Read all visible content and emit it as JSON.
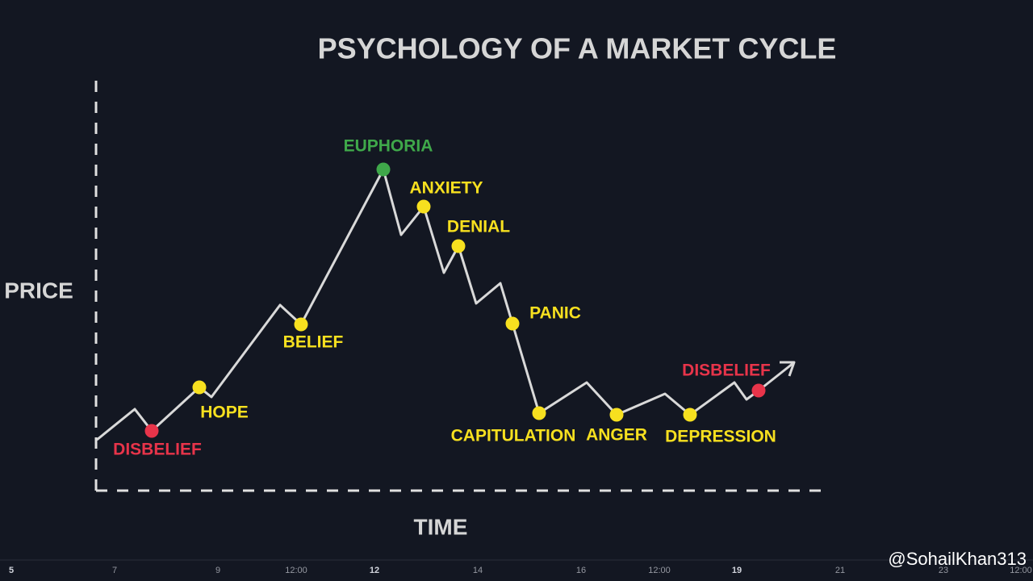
{
  "title": "PSYCHOLOGY OF A MARKET CYCLE",
  "axes": {
    "y": "PRICE",
    "x": "TIME"
  },
  "stages": [
    {
      "label": "DISBELIEF",
      "color": "#e8344a"
    },
    {
      "label": "HOPE",
      "color": "#f7e01f"
    },
    {
      "label": "BELIEF",
      "color": "#f7e01f"
    },
    {
      "label": "EUPHORIA",
      "color": "#3fa84a"
    },
    {
      "label": "ANXIETY",
      "color": "#f7e01f"
    },
    {
      "label": "DENIAL",
      "color": "#f7e01f"
    },
    {
      "label": "PANIC",
      "color": "#f7e01f"
    },
    {
      "label": "CAPITULATION",
      "color": "#f7e01f"
    },
    {
      "label": "ANGER",
      "color": "#f7e01f"
    },
    {
      "label": "DEPRESSION",
      "color": "#f7e01f"
    },
    {
      "label": "DISBELIEF",
      "color": "#e8344a"
    }
  ],
  "time_axis": [
    "5",
    "7",
    "9",
    "12:00",
    "12",
    "14",
    "16",
    "12:00",
    "19",
    "21",
    "23",
    "12:00"
  ],
  "watermark": "@SohailKhan313"
}
